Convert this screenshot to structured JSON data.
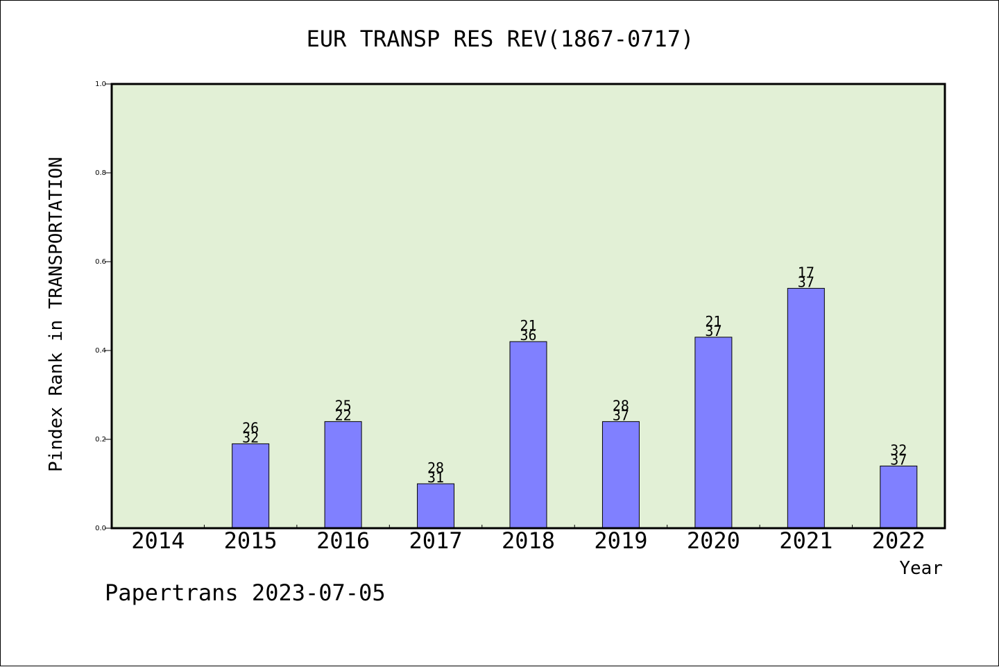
{
  "chart_data": {
    "type": "bar",
    "title": "EUR TRANSP RES REV(1867-0717)",
    "xlabel": "Year",
    "ylabel": "Pindex Rank in TRANSPORTATION",
    "footer": "Papertrans 2023-07-05",
    "categories": [
      "2014",
      "2015",
      "2016",
      "2017",
      "2018",
      "2019",
      "2020",
      "2021",
      "2022"
    ],
    "values": [
      null,
      0.19,
      0.24,
      0.1,
      0.42,
      0.24,
      0.43,
      0.54,
      0.14
    ],
    "rank_labels": [
      null,
      "26",
      "25",
      "28",
      "21",
      "28",
      "21",
      "17",
      "32"
    ],
    "total_labels": [
      null,
      "32",
      "22",
      "31",
      "36",
      "37",
      "37",
      "37",
      "37"
    ],
    "ylim": [
      0,
      1.0
    ],
    "yticks": [
      "0.0",
      "0.2",
      "0.4",
      "0.6",
      "0.8",
      "1.0"
    ],
    "ytick_values": [
      0,
      0.2,
      0.4,
      0.6,
      0.8,
      1.0
    ],
    "grid": false,
    "colors": {
      "plot_bg": "#e2f0d6",
      "bar_fill": "#8080ff",
      "bar_stroke": "#000000"
    }
  }
}
